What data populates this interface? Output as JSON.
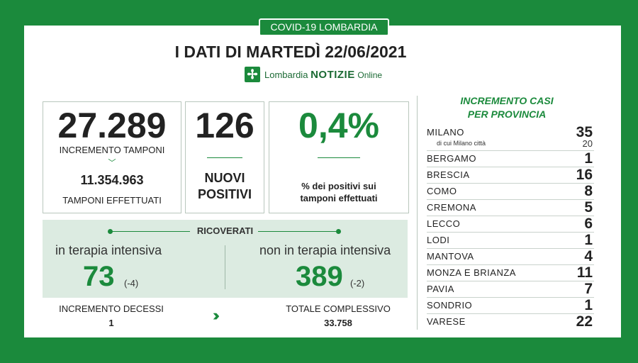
{
  "badge": "COVID-19 LOMBARDIA",
  "title": "I DATI DI MARTEDÌ 22/06/2021",
  "logo": {
    "brand": "Lombardia",
    "name": "NOTIZIE",
    "suffix": "Online"
  },
  "tamponi": {
    "increment_value": "27.289",
    "increment_label": "INCREMENTO TAMPONI",
    "total_value": "11.354.963",
    "total_label": "TAMPONI EFFETTUATI"
  },
  "positivi": {
    "value": "126",
    "label_line1": "NUOVI",
    "label_line2": "POSITIVI"
  },
  "percent": {
    "value": "0,4%",
    "label_line1": "% dei positivi sui",
    "label_line2": "tamponi effettuati"
  },
  "ricoverati": {
    "title": "RICOVERATI",
    "intensive": {
      "label": "in terapia intensiva",
      "value": "73",
      "delta": "(-4)"
    },
    "non_intensive": {
      "label": "non in terapia intensiva",
      "value": "389",
      "delta": "(-2)"
    }
  },
  "decessi": {
    "label": "INCREMENTO DECESSI",
    "value": "1"
  },
  "totale": {
    "label": "TOTALE COMPLESSIVO",
    "value": "33.758"
  },
  "province": {
    "title_line1": "INCREMENTO CASI",
    "title_line2": "PER PROVINCIA",
    "milano": {
      "name": "MILANO",
      "value": "35",
      "sub_label": "di cui Milano città",
      "sub_value": "20"
    },
    "rows": [
      {
        "name": "BERGAMO",
        "value": "1"
      },
      {
        "name": "BRESCIA",
        "value": "16"
      },
      {
        "name": "COMO",
        "value": "8"
      },
      {
        "name": "CREMONA",
        "value": "5"
      },
      {
        "name": "LECCO",
        "value": "6"
      },
      {
        "name": "LODI",
        "value": "1"
      },
      {
        "name": "MANTOVA",
        "value": "4"
      },
      {
        "name": "MONZA E BRIANZA",
        "value": "11"
      },
      {
        "name": "PAVIA",
        "value": "7"
      },
      {
        "name": "SONDRIO",
        "value": "1"
      },
      {
        "name": "VARESE",
        "value": "22"
      }
    ]
  },
  "colors": {
    "brand_green": "#1b8a3c",
    "panel_green": "#dcebe1"
  }
}
